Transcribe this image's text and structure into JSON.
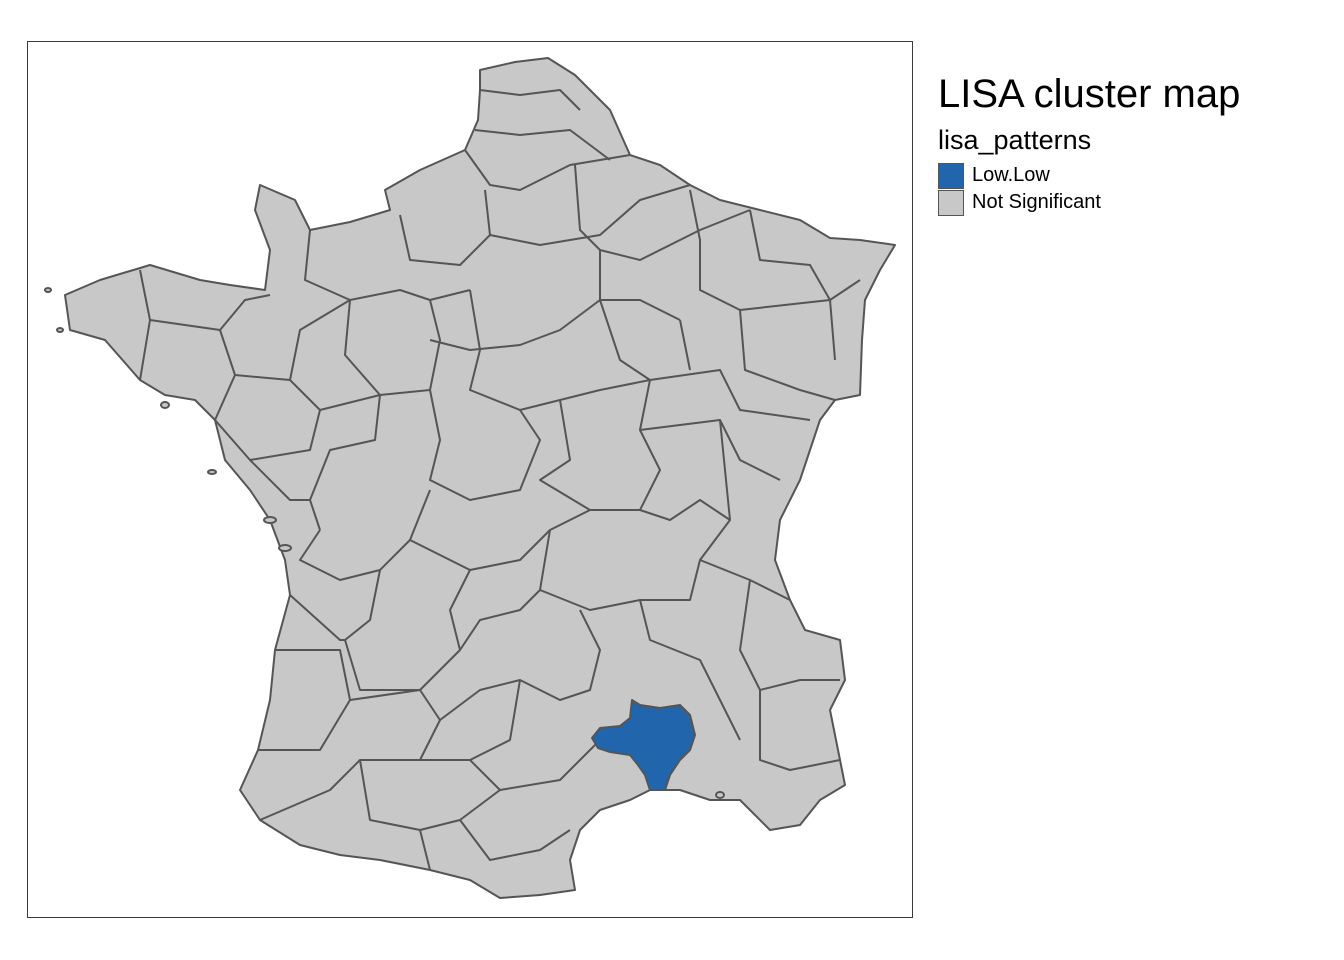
{
  "map": {
    "title": "LISA cluster map",
    "legend_title": "lisa_patterns",
    "legend_items": [
      {
        "label": "Low.Low",
        "color": "#2166ac"
      },
      {
        "label": "Not Significant",
        "color": "#c8c8c8"
      }
    ],
    "default_fill": "#c8c8c8",
    "highlight_fill": "#2166ac",
    "border_color": "#555555",
    "highlighted_region": "Gard"
  }
}
